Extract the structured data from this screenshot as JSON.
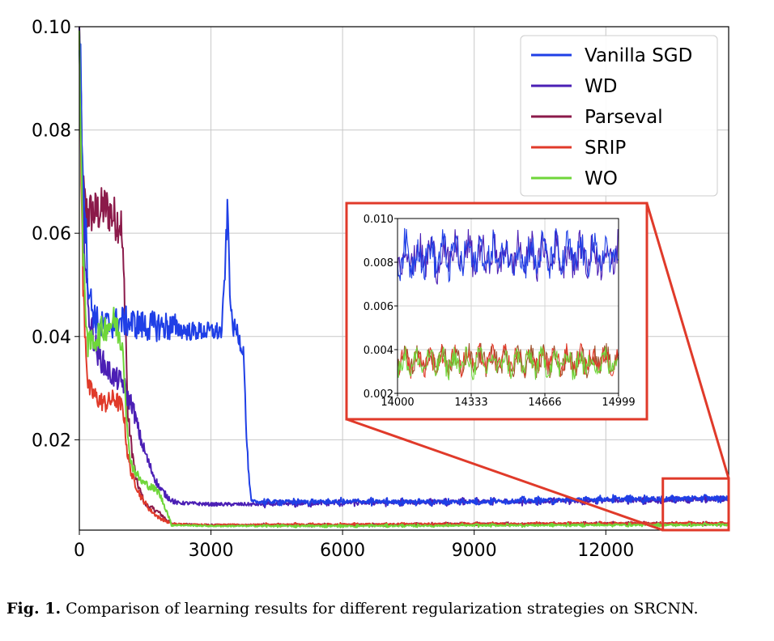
{
  "chart_data": {
    "type": "line",
    "title": "",
    "xlabel": "",
    "ylabel": "",
    "xlim": [
      0,
      14800
    ],
    "ylim": [
      0.0025,
      0.1
    ],
    "x_ticks": [
      0,
      3000,
      6000,
      9000,
      12000
    ],
    "x_tick_labels": [
      "0",
      "3000",
      "6000",
      "9000",
      "12000"
    ],
    "y_ticks": [
      0.02,
      0.04,
      0.06,
      0.08,
      0.1
    ],
    "y_tick_labels": [
      "0.02",
      "0.04",
      "0.06",
      "0.08",
      "0.10"
    ],
    "grid": true,
    "legend_position": "top-right",
    "series": [
      {
        "name": "Vanilla SGD",
        "color": "#1f3fe6",
        "points": [
          [
            0,
            0.1
          ],
          [
            80,
            0.074
          ],
          [
            200,
            0.05
          ],
          [
            300,
            0.045
          ],
          [
            400,
            0.043
          ],
          [
            500,
            0.042
          ],
          [
            1000,
            0.043
          ],
          [
            1500,
            0.042
          ],
          [
            2000,
            0.042
          ],
          [
            2500,
            0.041
          ],
          [
            3000,
            0.041
          ],
          [
            3250,
            0.041
          ],
          [
            3330,
            0.055
          ],
          [
            3380,
            0.065
          ],
          [
            3430,
            0.05
          ],
          [
            3480,
            0.042
          ],
          [
            3600,
            0.041
          ],
          [
            3700,
            0.038
          ],
          [
            3750,
            0.037
          ],
          [
            3800,
            0.022
          ],
          [
            3870,
            0.012
          ],
          [
            3920,
            0.008
          ],
          [
            4500,
            0.008
          ],
          [
            6000,
            0.008
          ],
          [
            9000,
            0.008
          ],
          [
            12000,
            0.0085
          ],
          [
            14800,
            0.0087
          ]
        ]
      },
      {
        "name": "WD",
        "color": "#4b1fb5",
        "points": [
          [
            0,
            0.1
          ],
          [
            80,
            0.065
          ],
          [
            200,
            0.045
          ],
          [
            400,
            0.037
          ],
          [
            600,
            0.034
          ],
          [
            800,
            0.032
          ],
          [
            1000,
            0.031
          ],
          [
            1100,
            0.028
          ],
          [
            1200,
            0.027
          ],
          [
            1400,
            0.02
          ],
          [
            1600,
            0.015
          ],
          [
            1800,
            0.011
          ],
          [
            2000,
            0.009
          ],
          [
            2200,
            0.0078
          ],
          [
            3000,
            0.0075
          ],
          [
            4000,
            0.0075
          ],
          [
            6000,
            0.0078
          ],
          [
            9000,
            0.008
          ],
          [
            12000,
            0.0082
          ],
          [
            14800,
            0.0085
          ]
        ]
      },
      {
        "name": "Parseval",
        "color": "#8b1a4a",
        "points": [
          [
            0,
            0.1
          ],
          [
            60,
            0.07
          ],
          [
            150,
            0.064
          ],
          [
            400,
            0.064
          ],
          [
            600,
            0.065
          ],
          [
            800,
            0.063
          ],
          [
            950,
            0.062
          ],
          [
            1050,
            0.045
          ],
          [
            1100,
            0.025
          ],
          [
            1200,
            0.018
          ],
          [
            1300,
            0.012
          ],
          [
            1500,
            0.0075
          ],
          [
            1800,
            0.006
          ],
          [
            2100,
            0.0037
          ],
          [
            3000,
            0.0035
          ],
          [
            6000,
            0.0035
          ],
          [
            9000,
            0.0037
          ],
          [
            12000,
            0.0038
          ],
          [
            14800,
            0.0038
          ]
        ]
      },
      {
        "name": "SRIP",
        "color": "#e03a2a",
        "points": [
          [
            0,
            0.1
          ],
          [
            80,
            0.05
          ],
          [
            200,
            0.03
          ],
          [
            400,
            0.028
          ],
          [
            600,
            0.027
          ],
          [
            800,
            0.028
          ],
          [
            1000,
            0.026
          ],
          [
            1100,
            0.017
          ],
          [
            1200,
            0.013
          ],
          [
            1400,
            0.009
          ],
          [
            1600,
            0.0065
          ],
          [
            1800,
            0.005
          ],
          [
            2100,
            0.0037
          ],
          [
            3000,
            0.0035
          ],
          [
            6000,
            0.0036
          ],
          [
            9000,
            0.0037
          ],
          [
            12000,
            0.0038
          ],
          [
            14800,
            0.0038
          ]
        ]
      },
      {
        "name": "WO",
        "color": "#6fd63a",
        "points": [
          [
            0,
            0.1
          ],
          [
            80,
            0.055
          ],
          [
            200,
            0.038
          ],
          [
            400,
            0.04
          ],
          [
            600,
            0.042
          ],
          [
            800,
            0.043
          ],
          [
            1000,
            0.038
          ],
          [
            1100,
            0.02
          ],
          [
            1200,
            0.015
          ],
          [
            1400,
            0.012
          ],
          [
            1600,
            0.011
          ],
          [
            1800,
            0.01
          ],
          [
            2000,
            0.006
          ],
          [
            2100,
            0.0035
          ],
          [
            3000,
            0.0033
          ],
          [
            6000,
            0.0033
          ],
          [
            9000,
            0.0034
          ],
          [
            12000,
            0.0035
          ],
          [
            14800,
            0.0035
          ]
        ]
      }
    ],
    "inset": {
      "xlim": [
        14000,
        14999
      ],
      "ylim": [
        0.002,
        0.01
      ],
      "x_ticks": [
        14000,
        14333,
        14666,
        14999
      ],
      "x_tick_labels": [
        "14000",
        "14333",
        "14666",
        "14999"
      ],
      "y_ticks": [
        0.002,
        0.004,
        0.006,
        0.008,
        0.01
      ],
      "y_tick_labels": [
        "0.002",
        "0.004",
        "0.006",
        "0.008",
        "0.010"
      ],
      "upper_group_mean": 0.0083,
      "lower_group_mean": 0.0035,
      "zoom_region": {
        "x": [
          13300,
          14800
        ],
        "y": [
          0.0025,
          0.0125
        ]
      }
    }
  },
  "caption": {
    "label": "Fig. 1.",
    "text": "Comparison of learning results for different regularization strategies on SRCNN."
  }
}
